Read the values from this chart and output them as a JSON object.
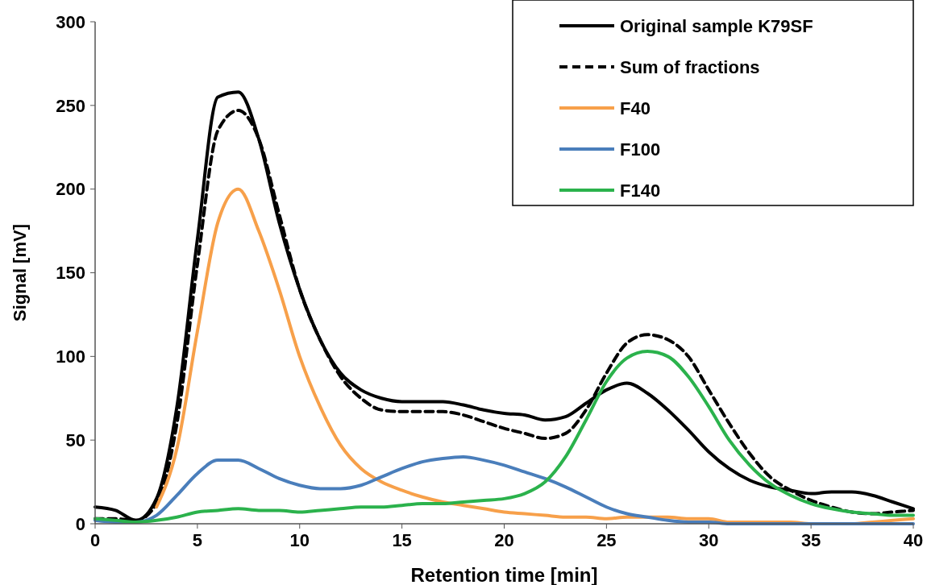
{
  "chart_data": {
    "type": "line",
    "xlabel": "Retention time [min]",
    "ylabel": "Signal [mV]",
    "x": [
      0,
      1,
      2,
      3,
      4,
      5,
      6,
      7,
      8,
      9,
      10,
      11,
      12,
      13,
      14,
      15,
      16,
      17,
      18,
      19,
      20,
      21,
      22,
      23,
      24,
      25,
      26,
      27,
      28,
      29,
      30,
      31,
      32,
      33,
      34,
      35,
      36,
      37,
      38,
      39,
      40
    ],
    "xlim": [
      0,
      40
    ],
    "xticks": [
      0,
      5,
      10,
      15,
      20,
      25,
      30,
      35,
      40
    ],
    "ylim": [
      0,
      300
    ],
    "yticks": [
      0,
      50,
      100,
      150,
      200,
      250,
      300
    ],
    "grid": false,
    "legend": "top right",
    "marker": "none",
    "series": [
      {
        "name": "Original sample K79SF",
        "color": "#000000",
        "line_style": "solid",
        "values": [
          10,
          8,
          2,
          15,
          70,
          170,
          255,
          258,
          230,
          180,
          140,
          110,
          90,
          80,
          75,
          73,
          73,
          73,
          71,
          68,
          66,
          65,
          62,
          64,
          72,
          80,
          84,
          78,
          68,
          56,
          43,
          33,
          26,
          22,
          20,
          18,
          19,
          19,
          17,
          13,
          9
        ]
      },
      {
        "name": "Sum of fractions",
        "color": "#000000",
        "line_style": "dashed",
        "values": [
          3,
          3,
          2,
          12,
          60,
          155,
          235,
          247,
          230,
          185,
          140,
          110,
          88,
          75,
          68,
          67,
          67,
          67,
          65,
          61,
          57,
          54,
          51,
          54,
          68,
          90,
          108,
          113,
          110,
          100,
          80,
          60,
          42,
          28,
          20,
          14,
          10,
          7,
          6,
          7,
          8
        ]
      },
      {
        "name": "F40",
        "color": "#f7a04a",
        "line_style": "solid",
        "values": [
          null,
          null,
          null,
          10,
          45,
          115,
          180,
          200,
          175,
          140,
          100,
          70,
          47,
          33,
          25,
          20,
          16,
          13,
          11,
          9,
          7,
          6,
          5,
          4,
          4,
          3,
          4,
          4,
          4,
          3,
          3,
          1,
          1,
          1,
          1,
          0,
          0,
          0,
          1,
          2,
          3
        ]
      },
      {
        "name": "F100",
        "color": "#4a7ebb",
        "line_style": "solid",
        "values": [
          2,
          1,
          1,
          5,
          17,
          30,
          38,
          38,
          33,
          27,
          23,
          21,
          21,
          23,
          28,
          33,
          37,
          39,
          40,
          38,
          35,
          31,
          27,
          22,
          16,
          10,
          6,
          4,
          2,
          1,
          1,
          0,
          0,
          0,
          0,
          0,
          0,
          0,
          0,
          0,
          0
        ]
      },
      {
        "name": "F140",
        "color": "#2bb24c",
        "line_style": "solid",
        "values": [
          3,
          2,
          1,
          2,
          4,
          7,
          8,
          9,
          8,
          8,
          7,
          8,
          9,
          10,
          10,
          11,
          12,
          12,
          13,
          14,
          15,
          18,
          25,
          40,
          62,
          85,
          99,
          103,
          100,
          88,
          70,
          50,
          35,
          24,
          17,
          12,
          9,
          7,
          6,
          5,
          5
        ]
      }
    ]
  }
}
